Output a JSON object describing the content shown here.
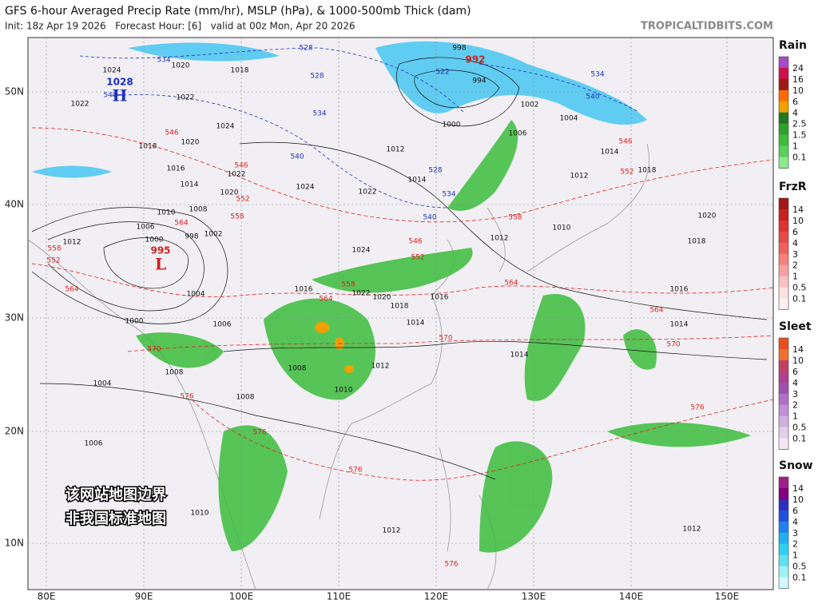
{
  "header": {
    "title": "GFS 6-hour Averaged Precip Rate (mm/hr), MSLP (hPa), & 1000-500mb Thick (dam)",
    "init": "Init: 18z Apr 19 2026   Forecast Hour: [6]   valid at 00z Mon, Apr 20 2026",
    "watermark": "TROPICALTIDBITS.COM"
  },
  "axes": {
    "lat": [
      "50N",
      "40N",
      "30N",
      "20N",
      "10N"
    ],
    "lon": [
      "80E",
      "90E",
      "100E",
      "110E",
      "120E",
      "130E",
      "140E",
      "150E"
    ]
  },
  "notice": [
    "该网站地图边界",
    "非我国标准地图"
  ],
  "legends": [
    {
      "name": "Rain",
      "levels": [
        24,
        16,
        10,
        6,
        4,
        2.5,
        1.5,
        1,
        0.1
      ],
      "colors": [
        "#a64ac9",
        "#d0104a",
        "#a01818",
        "#ff6a00",
        "#f0a000",
        "#1e7a1e",
        "#2ea02e",
        "#3cbc3c",
        "#5ad05a",
        "#8ee88e"
      ]
    },
    {
      "name": "FrzR",
      "levels": [
        14,
        10,
        6,
        4,
        3,
        2,
        1,
        0.5,
        0.1
      ],
      "colors": [
        "#a01818",
        "#c82020",
        "#e03030",
        "#e84848",
        "#f06060",
        "#f48080",
        "#f8a0a0",
        "#fbc0c0",
        "#fde0e0",
        "#fff0f0"
      ]
    },
    {
      "name": "Sleet",
      "levels": [
        14,
        10,
        6,
        4,
        3,
        2,
        1,
        0.5,
        0.1
      ],
      "colors": [
        "#e85020",
        "#f07030",
        "#c04060",
        "#b04090",
        "#a050b0",
        "#b070c8",
        "#c090d8",
        "#d0b0e0",
        "#e0d0ea",
        "#f0e8f4"
      ]
    },
    {
      "name": "Snow",
      "levels": [
        14,
        10,
        6,
        4,
        3,
        2,
        1,
        0.5,
        0.1
      ],
      "colors": [
        "#a0208a",
        "#800080",
        "#3030c0",
        "#2050e0",
        "#2080f0",
        "#20b0f0",
        "#30d0f0",
        "#60e0f0",
        "#a0f0f8",
        "#d0fafc"
      ]
    }
  ],
  "map": {
    "centers": [
      {
        "value": 1028,
        "letter": "H"
      },
      {
        "value": 995,
        "letter": "L"
      },
      {
        "value": 992
      }
    ],
    "isobars": [
      1020,
      1024,
      1022,
      1018,
      1022,
      1020,
      1024,
      1018,
      1016,
      1022,
      1024,
      1022,
      1012,
      1014,
      1000,
      998,
      994,
      1002,
      1006,
      1004,
      1014,
      1012,
      1018,
      1020,
      1018,
      1016,
      1014,
      1014,
      1012,
      1010,
      1016,
      1018,
      1014,
      1012,
      1010,
      1008,
      1006,
      1008,
      1004,
      1008,
      1006,
      1010,
      1012,
      1012,
      1002,
      998,
      1000,
      1006,
      1008,
      1010,
      1014,
      1020,
      1012,
      1000,
      1004,
      1016,
      1022,
      1020,
      1024
    ],
    "thickness_warm": [
      546,
      546,
      552,
      558,
      564,
      558,
      552,
      564,
      570,
      576,
      576,
      576,
      576,
      570,
      564,
      570,
      576,
      564,
      558,
      552,
      546,
      546,
      552,
      558,
      564
    ],
    "thickness_cold": [
      534,
      528,
      528,
      534,
      540,
      540,
      528,
      534,
      540,
      534,
      540,
      522
    ]
  }
}
